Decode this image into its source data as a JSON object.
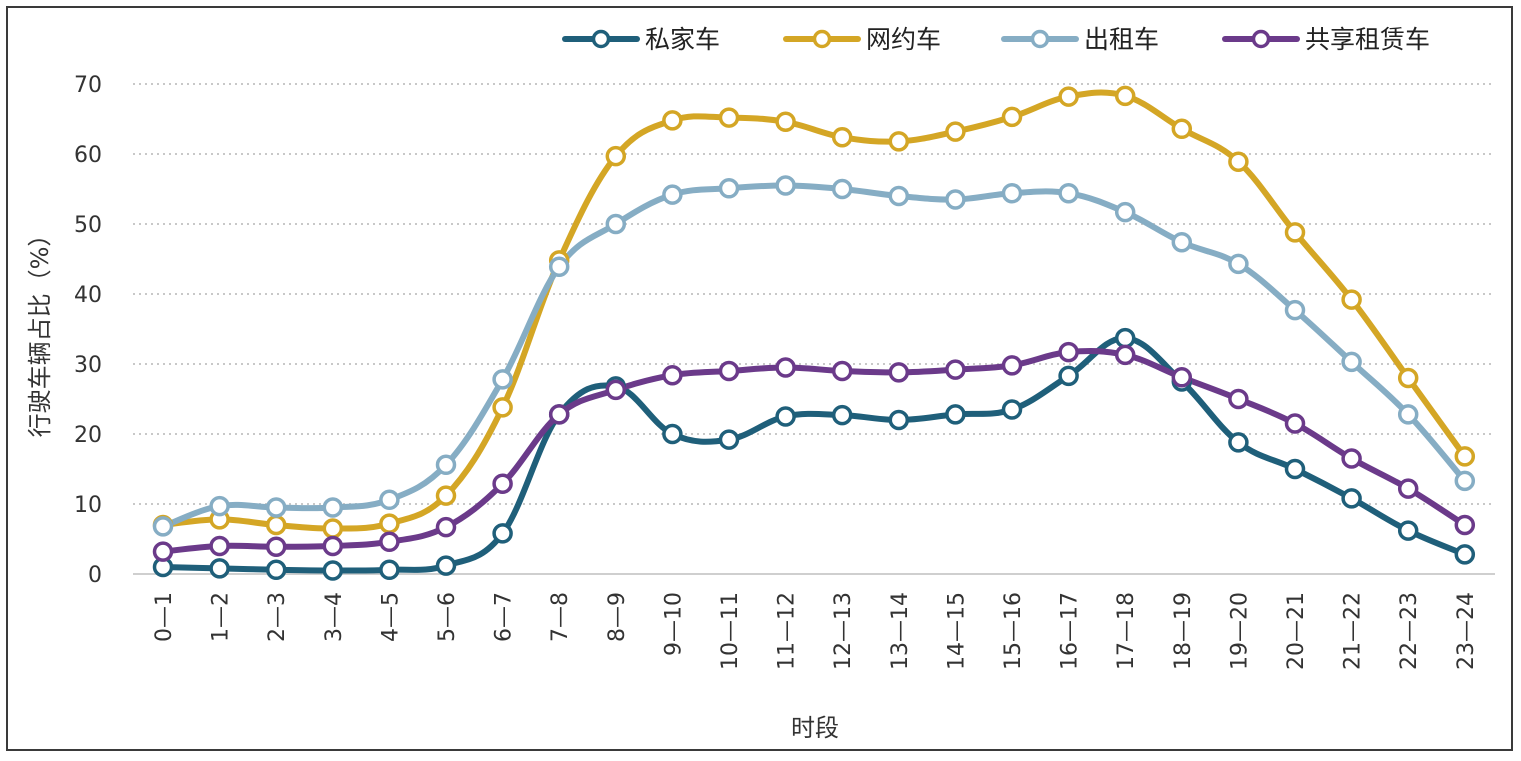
{
  "chart_data": {
    "type": "line",
    "xlabel": "时段",
    "ylabel": "行驶车辆占比（%）",
    "ylim": [
      0,
      70
    ],
    "yticks": [
      0,
      10,
      20,
      30,
      40,
      50,
      60,
      70
    ],
    "grid": "horizontal dotted",
    "legend_position": "top-right",
    "categories": [
      "0—1",
      "1—2",
      "2—3",
      "3—4",
      "4—5",
      "5—6",
      "6—7",
      "7—8",
      "8—9",
      "9—10",
      "10—11",
      "11—12",
      "12—13",
      "13—14",
      "14—15",
      "15—16",
      "16—17",
      "17—18",
      "18—19",
      "19—20",
      "20—21",
      "21—22",
      "22—23",
      "23—24"
    ],
    "series": [
      {
        "name": "私家车",
        "color": "#1f5f7a",
        "values": [
          1.0,
          0.8,
          0.6,
          0.5,
          0.6,
          1.2,
          5.8,
          22.8,
          26.8,
          20.0,
          19.2,
          22.5,
          22.7,
          22.0,
          22.8,
          23.5,
          28.3,
          33.7,
          27.5,
          18.8,
          15.0,
          10.8,
          6.2,
          2.8
        ]
      },
      {
        "name": "网约车",
        "color": "#d4a625",
        "values": [
          7.0,
          7.8,
          7.0,
          6.5,
          7.2,
          11.2,
          23.8,
          44.8,
          59.7,
          64.8,
          65.2,
          64.6,
          62.4,
          61.8,
          63.2,
          65.3,
          68.2,
          68.3,
          63.6,
          58.9,
          48.8,
          39.2,
          28.0,
          16.8
        ]
      },
      {
        "name": "出租车",
        "color": "#86adc4",
        "values": [
          6.8,
          9.7,
          9.5,
          9.5,
          10.6,
          15.6,
          27.8,
          43.9,
          50.0,
          54.2,
          55.1,
          55.5,
          55.0,
          54.0,
          53.5,
          54.4,
          54.4,
          51.7,
          47.4,
          44.3,
          37.7,
          30.3,
          22.8,
          13.3
        ]
      },
      {
        "name": "共享租赁车",
        "color": "#6b3a8a",
        "values": [
          3.2,
          4.0,
          3.9,
          4.0,
          4.6,
          6.7,
          12.9,
          22.8,
          26.3,
          28.4,
          29.0,
          29.5,
          29.0,
          28.8,
          29.2,
          29.8,
          31.7,
          31.3,
          28.1,
          25.0,
          21.5,
          16.5,
          12.2,
          7.0
        ]
      }
    ]
  }
}
